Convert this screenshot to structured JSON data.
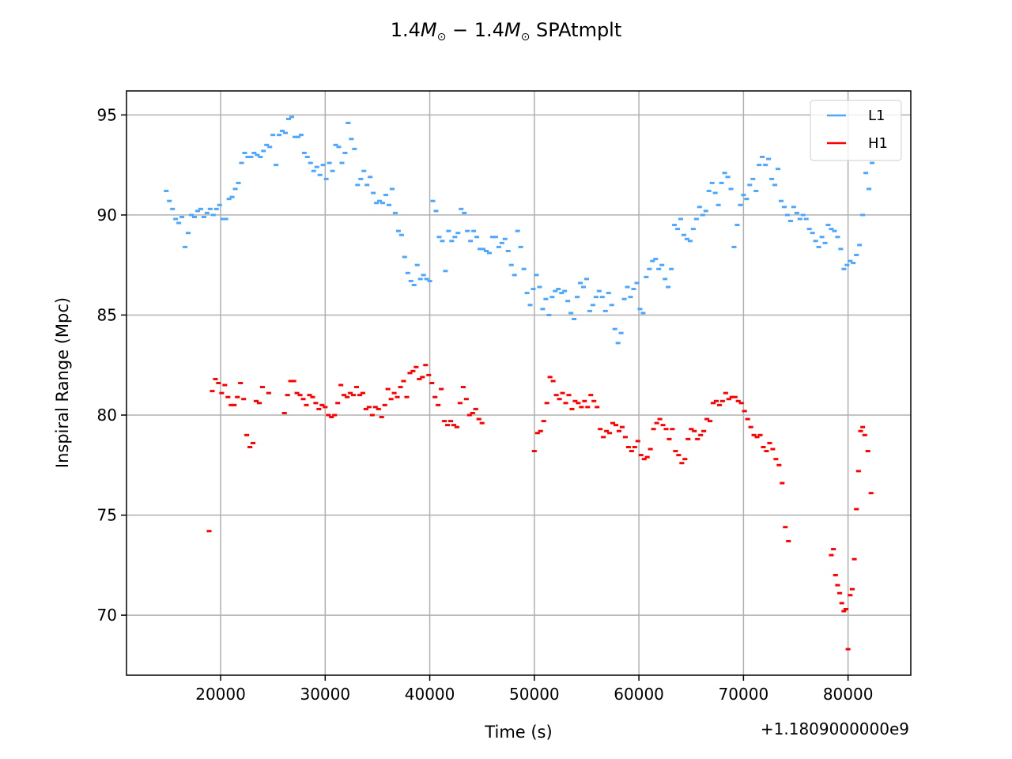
{
  "chart_data": {
    "type": "scatter",
    "title": {
      "prefix": "1.4",
      "mass_symbol": "M",
      "sub": "⊙",
      "dash": " − ",
      "suffix": " SPAtmplt"
    },
    "xlabel": "Time (s)",
    "ylabel": "Inspiral Range (Mpc)",
    "x_offset_label": "+1.1809000000e9",
    "xlim": [
      11000,
      86000
    ],
    "ylim": [
      67,
      96.2
    ],
    "xticks": [
      20000,
      30000,
      40000,
      50000,
      60000,
      70000,
      80000
    ],
    "yticks": [
      70,
      75,
      80,
      85,
      90,
      95
    ],
    "grid": true,
    "legend_position": "top-right",
    "series": [
      {
        "name": "L1",
        "color": "#4da6ff",
        "x": [
          14800,
          15100,
          15400,
          15700,
          16000,
          16300,
          16600,
          16900,
          17200,
          17500,
          17800,
          18100,
          18400,
          18700,
          19000,
          19300,
          19600,
          19900,
          20200,
          20500,
          20800,
          21100,
          21400,
          21700,
          22000,
          22300,
          22600,
          22900,
          23200,
          23500,
          23800,
          24100,
          24400,
          24700,
          25000,
          25300,
          25600,
          25900,
          26200,
          26500,
          26800,
          27100,
          27400,
          27700,
          28000,
          28300,
          28600,
          28900,
          29200,
          29500,
          29800,
          30100,
          30400,
          30700,
          31000,
          31300,
          31600,
          31900,
          32200,
          32500,
          32800,
          33100,
          33400,
          33700,
          34000,
          34300,
          34600,
          34900,
          35200,
          35500,
          35800,
          36100,
          36400,
          36700,
          37000,
          37300,
          37600,
          37900,
          38200,
          38500,
          38800,
          39100,
          39400,
          39700,
          40000,
          40300,
          40600,
          40900,
          41200,
          41500,
          41800,
          42100,
          42400,
          42700,
          43000,
          43300,
          43600,
          43900,
          44200,
          44500,
          44800,
          45100,
          45400,
          45700,
          46000,
          46300,
          46600,
          46900,
          47200,
          47500,
          47800,
          48100,
          48400,
          48700,
          49000,
          49300,
          49600,
          49900,
          50200,
          50500,
          50800,
          51100,
          51400,
          51700,
          52000,
          52300,
          52600,
          52900,
          53200,
          53500,
          53800,
          54100,
          54400,
          54700,
          55000,
          55300,
          55600,
          55900,
          56200,
          56500,
          56800,
          57100,
          57400,
          57700,
          58000,
          58300,
          58600,
          58900,
          59200,
          59500,
          59800,
          60100,
          60400,
          60700,
          61000,
          61300,
          61600,
          61900,
          62200,
          62500,
          62800,
          63100,
          63400,
          63700,
          64000,
          64300,
          64600,
          64900,
          65200,
          65500,
          65800,
          66100,
          66400,
          66700,
          67000,
          67300,
          67600,
          67900,
          68200,
          68500,
          68800,
          69100,
          69400,
          69700,
          70000,
          70300,
          70600,
          70900,
          71200,
          71500,
          71800,
          72100,
          72400,
          72700,
          73000,
          73300,
          73600,
          73900,
          74200,
          74500,
          74800,
          75100,
          75400,
          75700,
          76000,
          76300,
          76600,
          76900,
          77200,
          77500,
          77800,
          78100,
          78400,
          78700,
          79000,
          79300,
          79600,
          79900,
          80200,
          80500,
          80800,
          81100,
          81400,
          81700,
          82000,
          82300
        ],
        "y": [
          91.2,
          90.7,
          90.3,
          89.8,
          89.6,
          89.9,
          88.4,
          89.1,
          90.0,
          89.9,
          90.2,
          90.3,
          89.9,
          90.1,
          90.3,
          90.0,
          90.3,
          90.5,
          89.8,
          89.8,
          90.8,
          90.9,
          91.3,
          91.6,
          92.6,
          93.1,
          92.9,
          92.9,
          93.1,
          93.0,
          92.9,
          93.2,
          93.5,
          93.4,
          94.0,
          92.5,
          94.0,
          94.2,
          94.1,
          94.8,
          94.9,
          93.9,
          93.9,
          94.0,
          93.1,
          92.9,
          92.6,
          92.2,
          92.4,
          92.0,
          92.5,
          91.8,
          92.6,
          92.2,
          93.5,
          93.4,
          92.6,
          93.1,
          94.6,
          93.8,
          93.3,
          91.5,
          91.8,
          92.2,
          91.5,
          91.9,
          91.1,
          90.6,
          90.7,
          90.6,
          91.0,
          90.5,
          91.3,
          90.1,
          89.2,
          89.0,
          87.9,
          87.1,
          86.7,
          86.5,
          87.5,
          86.8,
          87.0,
          86.8,
          86.7,
          90.7,
          90.2,
          88.9,
          88.7,
          87.2,
          89.2,
          88.7,
          88.9,
          89.1,
          90.3,
          90.1,
          89.2,
          88.7,
          89.2,
          88.9,
          88.3,
          88.3,
          88.2,
          88.1,
          88.9,
          88.9,
          88.4,
          88.6,
          88.8,
          88.2,
          87.5,
          87.0,
          89.2,
          88.4,
          87.3,
          86.1,
          85.5,
          86.3,
          87.0,
          86.4,
          85.3,
          85.8,
          85.0,
          85.9,
          86.2,
          86.3,
          86.1,
          86.2,
          85.7,
          85.1,
          84.8,
          85.9,
          86.6,
          86.4,
          86.8,
          85.2,
          85.5,
          85.9,
          86.2,
          85.9,
          85.2,
          86.1,
          85.5,
          84.3,
          83.6,
          84.1,
          85.8,
          86.4,
          85.9,
          86.3,
          86.6,
          85.3,
          85.1,
          86.9,
          87.3,
          87.7,
          87.8,
          87.3,
          87.5,
          86.8,
          86.4,
          87.3,
          89.5,
          89.3,
          89.8,
          89.0,
          88.8,
          88.7,
          89.3,
          89.8,
          90.4,
          90.0,
          90.2,
          91.2,
          91.6,
          91.1,
          90.5,
          91.6,
          92.1,
          91.9,
          91.3,
          88.4,
          89.5,
          90.5,
          91.0,
          90.8,
          91.5,
          91.8,
          91.2,
          92.5,
          92.9,
          92.5,
          92.8,
          91.8,
          91.5,
          92.3,
          90.7,
          90.4,
          90.0,
          89.7,
          90.4,
          90.1,
          89.8,
          90.0,
          89.8,
          89.3,
          89.1,
          88.7,
          88.4,
          88.9,
          88.6,
          89.5,
          89.3,
          89.2,
          88.9,
          88.3,
          87.3,
          87.5,
          87.7,
          87.6,
          88.0,
          88.5,
          90.0,
          92.1,
          91.3,
          92.6
        ]
      },
      {
        "name": "H1",
        "color": "#ff0000",
        "x": [
          18900,
          19200,
          19500,
          19800,
          20100,
          20400,
          20700,
          21000,
          21300,
          21600,
          21900,
          22200,
          22500,
          22800,
          23100,
          23400,
          23700,
          24000,
          24600,
          26100,
          26400,
          26700,
          27000,
          27300,
          27600,
          27900,
          28200,
          28500,
          28800,
          29100,
          29400,
          29700,
          30000,
          30300,
          30600,
          30900,
          31200,
          31500,
          31800,
          32100,
          32400,
          32700,
          33000,
          33300,
          33600,
          33900,
          34200,
          34500,
          34800,
          35100,
          35400,
          35700,
          36000,
          36300,
          36600,
          36900,
          37200,
          37500,
          37800,
          38100,
          38400,
          38700,
          39000,
          39300,
          39600,
          39900,
          40200,
          40500,
          40800,
          41100,
          41400,
          41700,
          42000,
          42300,
          42600,
          42900,
          43200,
          43500,
          43800,
          44100,
          44400,
          44700,
          45000,
          50000,
          50300,
          50600,
          50900,
          51200,
          51500,
          51800,
          52100,
          52400,
          52700,
          53000,
          53300,
          53600,
          53900,
          54200,
          54500,
          54800,
          55100,
          55400,
          55700,
          56000,
          56300,
          56600,
          56900,
          57200,
          57500,
          57800,
          58100,
          58400,
          58700,
          59000,
          59300,
          59600,
          59900,
          60200,
          60500,
          60800,
          61100,
          61400,
          61700,
          62000,
          62300,
          62600,
          62900,
          63200,
          63500,
          63800,
          64100,
          64400,
          64700,
          65000,
          65300,
          65600,
          65900,
          66200,
          66500,
          66800,
          67100,
          67400,
          67700,
          68000,
          68300,
          68600,
          68900,
          69200,
          69500,
          69800,
          70100,
          70400,
          70700,
          71000,
          71300,
          71600,
          71900,
          72200,
          72500,
          72800,
          73100,
          73400,
          73700,
          74000,
          74300,
          78400,
          78600,
          78800,
          79000,
          79200,
          79400,
          79600,
          79800,
          80000,
          80200,
          80400,
          80600,
          80800,
          81000,
          81200,
          81400,
          81600,
          81900,
          82200
        ],
        "y": [
          74.2,
          81.2,
          81.8,
          81.6,
          81.1,
          81.5,
          80.9,
          80.5,
          80.5,
          80.9,
          81.6,
          80.8,
          79.0,
          78.4,
          78.6,
          80.7,
          80.6,
          81.4,
          81.1,
          80.1,
          81.0,
          81.7,
          81.7,
          81.1,
          81.0,
          80.8,
          80.5,
          81.0,
          80.9,
          80.6,
          80.3,
          80.5,
          80.4,
          80.0,
          79.9,
          80.0,
          80.6,
          81.5,
          81.0,
          80.9,
          81.1,
          81.0,
          81.4,
          81.0,
          81.1,
          80.3,
          80.4,
          80.0,
          80.4,
          80.3,
          79.9,
          80.5,
          81.3,
          80.8,
          81.1,
          80.9,
          81.4,
          81.7,
          80.9,
          82.1,
          82.2,
          82.4,
          81.8,
          81.9,
          82.5,
          82.0,
          81.6,
          80.9,
          80.5,
          81.3,
          79.7,
          79.5,
          79.7,
          79.5,
          79.4,
          80.6,
          81.4,
          80.8,
          80.0,
          80.1,
          80.3,
          79.8,
          79.6,
          78.2,
          79.1,
          79.2,
          79.7,
          80.6,
          81.9,
          81.7,
          81.0,
          80.8,
          81.1,
          80.6,
          81.0,
          80.3,
          80.7,
          80.6,
          80.4,
          80.7,
          80.4,
          81.0,
          80.7,
          80.4,
          79.3,
          78.9,
          79.2,
          79.1,
          79.6,
          79.5,
          79.2,
          79.4,
          78.9,
          78.4,
          78.2,
          78.4,
          78.7,
          78.0,
          77.8,
          77.9,
          78.3,
          79.3,
          79.6,
          79.8,
          79.5,
          79.3,
          78.8,
          79.3,
          78.2,
          78.0,
          77.6,
          77.8,
          78.8,
          79.3,
          79.2,
          78.8,
          79.0,
          79.2,
          79.8,
          79.7,
          80.6,
          80.7,
          80.5,
          80.7,
          81.1,
          80.8,
          80.9,
          80.9,
          80.7,
          80.6,
          80.2,
          79.8,
          79.4,
          79.0,
          78.9,
          79.0,
          78.4,
          78.2,
          78.6,
          78.3,
          77.8,
          77.5,
          76.6,
          74.4,
          73.7,
          73.0,
          73.3,
          72.0,
          71.5,
          71.1,
          70.6,
          70.2,
          70.3,
          68.3,
          71.0,
          71.3,
          72.8,
          75.3,
          77.2,
          79.2,
          79.4,
          79.0,
          78.2,
          76.1
        ]
      }
    ]
  }
}
